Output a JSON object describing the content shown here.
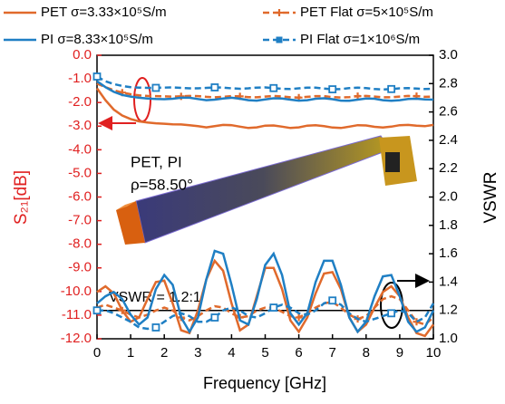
{
  "chart_data": {
    "type": "line",
    "x_label": "Frequency [GHz]",
    "y_label": "S₂₁[dB]",
    "y2_label": "VSWR",
    "annotations": [
      "PET, PI",
      "ρ=58.50°",
      "VSWR = 1.2:1"
    ],
    "x": [
      0,
      0.25,
      0.5,
      0.75,
      1,
      1.25,
      1.5,
      1.75,
      2,
      2.25,
      2.5,
      2.75,
      3,
      3.25,
      3.5,
      3.75,
      4,
      4.25,
      4.5,
      4.75,
      5,
      5.25,
      5.5,
      5.75,
      6,
      6.25,
      6.5,
      6.75,
      7,
      7.25,
      7.5,
      7.75,
      8,
      8.25,
      8.5,
      8.75,
      9,
      9.25,
      9.5,
      9.75,
      10
    ],
    "xlim": [
      0,
      10
    ],
    "xticks": [
      0,
      1,
      2,
      3,
      4,
      5,
      6,
      7,
      8,
      9,
      10
    ],
    "ylim": [
      -12,
      0
    ],
    "yticks": [
      {
        "value": 0,
        "label": "0.0"
      },
      {
        "value": -1,
        "label": "-1.0"
      },
      {
        "value": -2,
        "label": "-2.0"
      },
      {
        "value": -3,
        "label": "-3.0"
      },
      {
        "value": -4,
        "label": "-4.0"
      },
      {
        "value": -5,
        "label": "-5.0"
      },
      {
        "value": -6,
        "label": "-6.0"
      },
      {
        "value": -7,
        "label": "-7.0"
      },
      {
        "value": -8,
        "label": "-8.0"
      },
      {
        "value": -9,
        "label": "-9.0"
      },
      {
        "value": -10,
        "label": "-10.0"
      },
      {
        "value": -11,
        "label": "-11.0"
      },
      {
        "value": -12,
        "label": "-12.0"
      }
    ],
    "y2lim": [
      1,
      3
    ],
    "y2ticks": [
      {
        "value": 1,
        "label": "1.0"
      },
      {
        "value": 1.2,
        "label": "1.2"
      },
      {
        "value": 1.4,
        "label": "1.4"
      },
      {
        "value": 1.6,
        "label": "1.6"
      },
      {
        "value": 1.8,
        "label": "1.8"
      },
      {
        "value": 2,
        "label": "2.0"
      },
      {
        "value": 2.2,
        "label": "2.2"
      },
      {
        "value": 2.4,
        "label": "2.4"
      },
      {
        "value": 2.6,
        "label": "2.6"
      },
      {
        "value": 2.8,
        "label": "2.8"
      },
      {
        "value": 3,
        "label": "3.0"
      }
    ],
    "reference_y2": 1.2,
    "series": [
      {
        "name": "PET σ=3.33×10⁵S/m",
        "color": "#e06a2c",
        "dash": false,
        "marker": "none",
        "values": [
          -1.4,
          -1.9,
          -2.3,
          -2.55,
          -2.7,
          -2.8,
          -2.85,
          -2.88,
          -2.9,
          -2.92,
          -2.93,
          -2.96,
          -3.0,
          -3.05,
          -3.0,
          -2.95,
          -2.96,
          -3.02,
          -3.08,
          -3.05,
          -2.98,
          -2.97,
          -3.02,
          -3.08,
          -3.05,
          -2.98,
          -2.96,
          -3.0,
          -3.06,
          -3.08,
          -3.02,
          -2.96,
          -2.97,
          -3.03,
          -3.06,
          -3.02,
          -2.96,
          -2.95,
          -2.98,
          -3.0,
          -2.95
        ],
        "vswr": [
          1.33,
          1.37,
          1.32,
          1.2,
          1.12,
          1.15,
          1.28,
          1.4,
          1.41,
          1.25,
          1.06,
          1.04,
          1.2,
          1.42,
          1.55,
          1.48,
          1.25,
          1.06,
          1.1,
          1.3,
          1.5,
          1.5,
          1.35,
          1.13,
          1.05,
          1.15,
          1.32,
          1.46,
          1.47,
          1.35,
          1.15,
          1.05,
          1.1,
          1.22,
          1.33,
          1.37,
          1.3,
          1.15,
          1.04,
          1.02,
          1.1
        ]
      },
      {
        "name": "PET Flat σ=5×10⁵S/m",
        "color": "#e06a2c",
        "dash": true,
        "marker": "plus",
        "values": [
          -1.2,
          -1.35,
          -1.48,
          -1.58,
          -1.65,
          -1.7,
          -1.72,
          -1.73,
          -1.74,
          -1.75,
          -1.74,
          -1.72,
          -1.73,
          -1.76,
          -1.78,
          -1.76,
          -1.73,
          -1.74,
          -1.77,
          -1.78,
          -1.75,
          -1.72,
          -1.74,
          -1.78,
          -1.79,
          -1.76,
          -1.73,
          -1.73,
          -1.77,
          -1.79,
          -1.77,
          -1.73,
          -1.72,
          -1.75,
          -1.78,
          -1.78,
          -1.75,
          -1.72,
          -1.73,
          -1.76,
          -1.75
        ],
        "vswr": [
          1.22,
          1.24,
          1.22,
          1.2,
          1.17,
          1.15,
          1.17,
          1.2,
          1.22,
          1.2,
          1.15,
          1.13,
          1.16,
          1.2,
          1.23,
          1.22,
          1.18,
          1.15,
          1.16,
          1.2,
          1.22,
          1.22,
          1.19,
          1.16,
          1.15,
          1.18,
          1.22,
          1.25,
          1.26,
          1.22,
          1.17,
          1.14,
          1.16,
          1.22,
          1.28,
          1.3,
          1.28,
          1.2,
          1.12,
          1.1,
          1.15
        ]
      },
      {
        "name": "PI σ=8.33×10⁵S/m",
        "color": "#1f7fc4",
        "dash": false,
        "marker": "none",
        "values": [
          -1.1,
          -1.35,
          -1.55,
          -1.68,
          -1.75,
          -1.8,
          -1.83,
          -1.85,
          -1.86,
          -1.84,
          -1.8,
          -1.8,
          -1.85,
          -1.9,
          -1.88,
          -1.83,
          -1.8,
          -1.84,
          -1.9,
          -1.92,
          -1.87,
          -1.82,
          -1.83,
          -1.88,
          -1.92,
          -1.9,
          -1.84,
          -1.82,
          -1.86,
          -1.92,
          -1.93,
          -1.88,
          -1.83,
          -1.84,
          -1.9,
          -1.93,
          -1.9,
          -1.85,
          -1.84,
          -1.87,
          -1.88
        ],
        "vswr": [
          1.25,
          1.3,
          1.33,
          1.28,
          1.17,
          1.1,
          1.15,
          1.35,
          1.45,
          1.38,
          1.15,
          1.05,
          1.15,
          1.42,
          1.62,
          1.6,
          1.38,
          1.13,
          1.1,
          1.28,
          1.52,
          1.6,
          1.45,
          1.18,
          1.1,
          1.18,
          1.4,
          1.55,
          1.55,
          1.38,
          1.15,
          1.05,
          1.12,
          1.3,
          1.44,
          1.45,
          1.3,
          1.12,
          1.05,
          1.08,
          1.2
        ]
      },
      {
        "name": "PI Flat σ=1×10⁶S/m",
        "color": "#1f7fc4",
        "dash": true,
        "marker": "square",
        "values": [
          -0.9,
          -1.1,
          -1.22,
          -1.3,
          -1.35,
          -1.37,
          -1.38,
          -1.38,
          -1.37,
          -1.36,
          -1.38,
          -1.4,
          -1.4,
          -1.38,
          -1.36,
          -1.37,
          -1.4,
          -1.42,
          -1.4,
          -1.37,
          -1.36,
          -1.39,
          -1.42,
          -1.43,
          -1.4,
          -1.37,
          -1.37,
          -1.41,
          -1.44,
          -1.43,
          -1.39,
          -1.37,
          -1.39,
          -1.43,
          -1.45,
          -1.43,
          -1.4,
          -1.39,
          -1.41,
          -1.43,
          -1.42
        ],
        "vswr": [
          1.2,
          1.2,
          1.18,
          1.15,
          1.12,
          1.08,
          1.07,
          1.08,
          1.12,
          1.16,
          1.18,
          1.16,
          1.12,
          1.12,
          1.15,
          1.2,
          1.22,
          1.2,
          1.16,
          1.15,
          1.18,
          1.22,
          1.24,
          1.22,
          1.18,
          1.17,
          1.2,
          1.25,
          1.27,
          1.24,
          1.18,
          1.14,
          1.12,
          1.14,
          1.16,
          1.18,
          1.2,
          1.18,
          1.12,
          1.15,
          1.25
        ]
      }
    ]
  }
}
